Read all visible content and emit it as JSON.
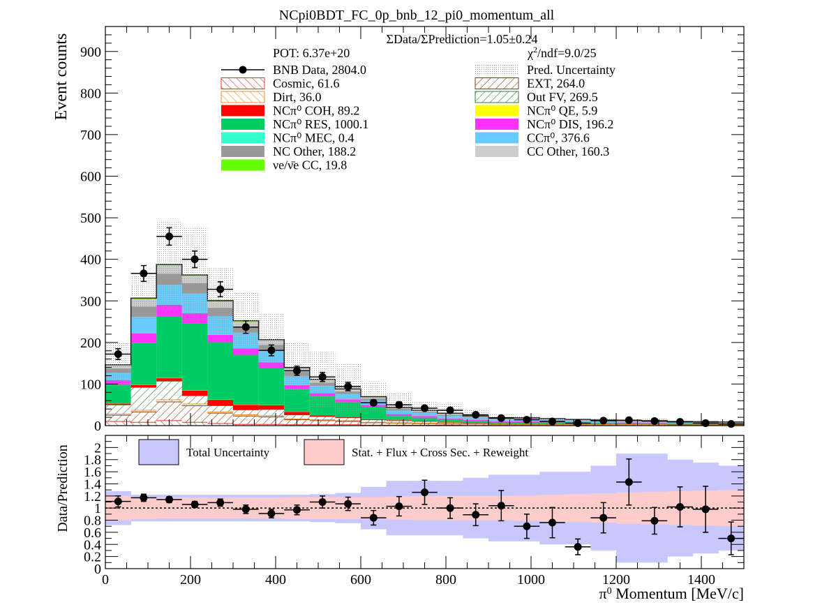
{
  "title": "NCpi0BDT_FC_0p_bnb_12_pi0_momentum_all",
  "chart_data": [
    {
      "type": "bar",
      "stacked": true,
      "panel": "main",
      "ylabel": "Event counts",
      "ylim": [
        0,
        960
      ],
      "xlim": [
        0,
        1500
      ],
      "ytick_labels": [
        "0",
        "100",
        "200",
        "300",
        "400",
        "500",
        "600",
        "700",
        "800",
        "900"
      ],
      "bin_edges": [
        0,
        60,
        120,
        180,
        240,
        300,
        360,
        420,
        480,
        540,
        600,
        660,
        720,
        780,
        840,
        900,
        960,
        1020,
        1080,
        1140,
        1200,
        1260,
        1320,
        1380,
        1440,
        1500
      ],
      "annotations": {
        "ratio_text": "ΣData/ΣPrediction=1.05±0.24",
        "pot_text": "POT: 6.37e+20",
        "chi2_text": "χ²/ndf=9.0/25"
      },
      "legend": [
        {
          "label": "BNB Data, 2804.0",
          "style": "marker"
        },
        {
          "label": "Pred. Uncertainty",
          "style": "dots",
          "color": "#b4b4b4"
        },
        {
          "label": "Cosmic, 61.6",
          "style": "hatch",
          "color": "#e8302a"
        },
        {
          "label": "EXT, 264.0",
          "style": "hatch",
          "color": "#8b3a10"
        },
        {
          "label": "Dirt, 36.0",
          "style": "hatch",
          "color": "#f08c28"
        },
        {
          "label": "Out FV, 269.5",
          "style": "hatch",
          "color": "#2e7d32"
        },
        {
          "label": "NCπ⁰ COH,  89.2",
          "style": "fill",
          "color": "#ff0000"
        },
        {
          "label": "NCπ⁰ QE,  5.9",
          "style": "fill",
          "color": "#ffff00"
        },
        {
          "label": "NCπ⁰ RES,  1000.1",
          "style": "fill",
          "color": "#00cc66"
        },
        {
          "label": "NCπ⁰ DIS,  196.2",
          "style": "fill",
          "color": "#ff33ff"
        },
        {
          "label": "NCπ⁰ MEC,  0.4",
          "style": "fill",
          "color": "#33ffcc"
        },
        {
          "label": "CCπ⁰, 376.6",
          "style": "fill",
          "color": "#66ccff"
        },
        {
          "label": "NC Other, 188.2",
          "style": "fill",
          "color": "#999999"
        },
        {
          "label": "CC Other, 160.3",
          "style": "fill",
          "color": "#cccccc"
        },
        {
          "label": "νe/ν̄e CC, 19.8",
          "style": "fill",
          "color": "#66ff00"
        }
      ],
      "series": [
        {
          "name": "Cosmic, 61.6",
          "color": "#e8302a",
          "values": [
            10,
            8,
            12,
            8,
            5,
            3,
            3,
            2,
            2,
            2,
            1,
            1,
            1,
            1,
            0.5,
            0.5,
            0.5,
            0.5,
            0.5,
            0.3,
            0.3,
            0.3,
            0.2,
            0.2,
            0.2
          ]
        },
        {
          "name": "EXT, 264.0",
          "color": "#8b3a10",
          "values": [
            15,
            25,
            45,
            40,
            25,
            20,
            18,
            12,
            10,
            8,
            6,
            5,
            4,
            3,
            3,
            2,
            2,
            2,
            2,
            2,
            2,
            2,
            1.5,
            1.5,
            1.5
          ]
        },
        {
          "name": "Dirt, 36.0",
          "color": "#f08c28",
          "values": [
            3,
            4,
            5,
            4,
            3,
            3,
            3,
            2,
            2,
            2,
            1,
            1,
            1,
            1,
            0.5,
            0.5,
            0.5,
            0.5,
            0.2,
            0.2,
            0.2,
            0.2,
            0.2,
            0.1,
            0.1
          ]
        },
        {
          "name": "Out FV, 269.5",
          "color": "#2e7d32",
          "values": [
            22,
            55,
            45,
            20,
            15,
            12,
            15,
            10,
            8,
            7,
            6,
            5,
            4,
            3,
            2,
            2,
            2,
            2,
            2,
            2,
            2,
            2,
            1.5,
            1.5,
            1.5
          ]
        },
        {
          "name": "NCπ⁰ COH,  89.2",
          "color": "#ff0000",
          "values": [
            3,
            6,
            7,
            12,
            14,
            12,
            10,
            7,
            3,
            2,
            1.5,
            1,
            1,
            1,
            0.7,
            0.5,
            0.3,
            0.3,
            0.2,
            0.2,
            0.1,
            0.1,
            0.1,
            0.1,
            0.1
          ]
        },
        {
          "name": "NCπ⁰ QE,  5.9",
          "color": "#ffff00",
          "values": [
            0.5,
            0.6,
            0.6,
            0.5,
            0.5,
            0.4,
            0.4,
            0.3,
            0.3,
            0.3,
            0.2,
            0.2,
            0.2,
            0.2,
            0.1,
            0.1,
            0.1,
            0.1,
            0.1,
            0.1,
            0.1,
            0.1,
            0.1,
            0.1,
            0.1
          ]
        },
        {
          "name": "NCπ⁰ RES,  1000.1",
          "color": "#00cc66",
          "values": [
            46,
            100,
            148,
            162,
            138,
            120,
            90,
            55,
            45,
            35,
            28,
            10,
            8,
            5,
            4,
            3,
            3,
            2,
            1.5,
            1.5,
            1,
            0.8,
            0.5,
            0.5,
            0.3
          ]
        },
        {
          "name": "NCπ⁰ DIS,  196.2",
          "color": "#ff33ff",
          "values": [
            10,
            23,
            28,
            24,
            18,
            15,
            13,
            9,
            8,
            7,
            6,
            5,
            4,
            3,
            3,
            2,
            2,
            2,
            1.5,
            1.5,
            1,
            1,
            1,
            0.8,
            0.7
          ]
        },
        {
          "name": "NCπ⁰ MEC,  0.4",
          "color": "#33ffcc",
          "values": [
            0.03,
            0.04,
            0.04,
            0.04,
            0.03,
            0.03,
            0.02,
            0.02,
            0.02,
            0.02,
            0.01,
            0.01,
            0.01,
            0.01,
            0.01,
            0.01,
            0.01,
            0.01,
            0.005,
            0.005,
            0.005,
            0.005,
            0.005,
            0.005,
            0.005
          ]
        },
        {
          "name": "CCπ⁰, 376.6",
          "color": "#66ccff",
          "values": [
            18,
            40,
            48,
            47,
            45,
            38,
            30,
            22,
            17,
            13,
            10,
            8,
            7,
            6,
            5,
            4,
            4,
            3,
            3,
            2,
            2,
            2,
            1.5,
            1.5,
            1
          ]
        },
        {
          "name": "NC Other, 188.2",
          "color": "#999999",
          "values": [
            10,
            25,
            27,
            25,
            20,
            15,
            12,
            10,
            8,
            6,
            5,
            4,
            3,
            3,
            2,
            2,
            2,
            2,
            1.5,
            1.5,
            1.5,
            1,
            1,
            1,
            1
          ]
        },
        {
          "name": "CC Other, 160.3",
          "color": "#cccccc",
          "values": [
            8,
            18,
            20,
            18,
            15,
            12,
            11,
            9,
            7,
            5,
            4,
            3,
            3,
            3,
            2,
            2,
            2,
            2,
            2,
            2,
            2,
            2,
            2,
            2,
            2
          ]
        },
        {
          "name": "νe/ν̄e CC, 19.8",
          "color": "#66ff00",
          "values": [
            1,
            2,
            2,
            2,
            2,
            2,
            1.5,
            1.5,
            1,
            1,
            1,
            0.5,
            0.5,
            0.5,
            0.5,
            0.3,
            0.3,
            0.3,
            0.3,
            0.2,
            0.2,
            0.2,
            0.2,
            0.2,
            0.2
          ]
        }
      ],
      "data_points": {
        "name": "BNB Data, 2804.0",
        "x": [
          30,
          90,
          150,
          210,
          270,
          330,
          390,
          450,
          510,
          570,
          630,
          690,
          750,
          810,
          870,
          930,
          990,
          1050,
          1110,
          1170,
          1230,
          1290,
          1350,
          1410,
          1470
        ],
        "y": [
          172,
          366,
          455,
          400,
          328,
          237,
          181,
          132,
          117,
          94,
          55,
          50,
          42,
          37,
          26,
          18,
          14,
          10,
          6,
          12,
          13,
          11,
          9,
          6,
          4
        ],
        "yerr": [
          13,
          19,
          21,
          20,
          18,
          15,
          13,
          11,
          11,
          10,
          7,
          7,
          6,
          6,
          5,
          4,
          4,
          3,
          2.5,
          3.5,
          3.6,
          3.3,
          3,
          2.5,
          2
        ],
        "xerr": 30
      },
      "uncertainty_band": {
        "upper": [
          201,
          360,
          493,
          475,
          380,
          320,
          268,
          200,
          180,
          150,
          105,
          80,
          58,
          52,
          38,
          27,
          25,
          20,
          20,
          17,
          15,
          18,
          13,
          13,
          11
        ]
      }
    },
    {
      "type": "scatter",
      "panel": "ratio",
      "xlabel": "π⁰ Momentum [MeV/c]",
      "ylabel": "Data/Prediction",
      "ylim": [
        0,
        2.2
      ],
      "xlim": [
        0,
        1500
      ],
      "ytick_labels": [
        "0",
        "0.2",
        "0.4",
        "0.6",
        "0.8",
        "1",
        "1.2",
        "1.4",
        "1.6",
        "1.8",
        "2"
      ],
      "xtick_labels": [
        "0",
        "200",
        "400",
        "600",
        "800",
        "1000",
        "1200",
        "1400"
      ],
      "legend": [
        {
          "label": "Total Uncertainty",
          "color": "#c8c8ff"
        },
        {
          "label": "Stat. + Flux + Cross Sec. + Reweight",
          "color": "#ffcccc"
        }
      ],
      "x": [
        30,
        90,
        150,
        210,
        270,
        330,
        390,
        450,
        510,
        570,
        630,
        690,
        750,
        810,
        870,
        930,
        990,
        1050,
        1110,
        1170,
        1230,
        1290,
        1350,
        1410,
        1470
      ],
      "ratio": [
        1.11,
        1.17,
        1.14,
        1.06,
        1.09,
        0.98,
        0.91,
        0.97,
        1.1,
        1.07,
        0.84,
        1.03,
        1.26,
        1.0,
        0.89,
        1.04,
        0.7,
        0.76,
        0.36,
        0.84,
        1.43,
        0.79,
        1.02,
        0.98,
        0.5
      ],
      "ratio_err": [
        0.09,
        0.06,
        0.05,
        0.05,
        0.06,
        0.07,
        0.07,
        0.08,
        0.1,
        0.11,
        0.12,
        0.16,
        0.2,
        0.17,
        0.18,
        0.25,
        0.2,
        0.25,
        0.13,
        0.25,
        0.38,
        0.22,
        0.33,
        0.38,
        0.27
      ],
      "total_unc": [
        0.28,
        0.22,
        0.22,
        0.22,
        0.22,
        0.22,
        0.22,
        0.22,
        0.23,
        0.25,
        0.35,
        0.45,
        0.45,
        0.45,
        0.5,
        0.55,
        0.55,
        0.6,
        0.6,
        0.7,
        0.9,
        0.9,
        0.8,
        0.75,
        0.7
      ],
      "syst_unc": [
        0.2,
        0.18,
        0.17,
        0.17,
        0.17,
        0.17,
        0.17,
        0.18,
        0.18,
        0.18,
        0.18,
        0.19,
        0.2,
        0.2,
        0.2,
        0.2,
        0.21,
        0.22,
        0.23,
        0.24,
        0.26,
        0.27,
        0.28,
        0.29,
        0.3
      ]
    }
  ]
}
